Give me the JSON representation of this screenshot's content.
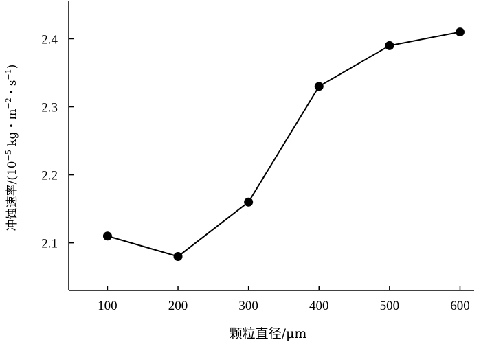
{
  "chart_data": {
    "type": "line",
    "title": "",
    "xlabel": "颗粒直径/μm",
    "ylabel_main": "冲蚀速率/(10",
    "ylabel_exp1": "−5",
    "ylabel_kg": " kg・m",
    "ylabel_exp2": "−2",
    "ylabel_s": "・s",
    "ylabel_exp3": "−1",
    "ylabel_close": ")",
    "x": [
      100,
      200,
      300,
      400,
      500,
      600
    ],
    "series": [
      {
        "values": [
          2.11,
          2.08,
          2.16,
          2.33,
          2.39,
          2.41
        ]
      }
    ],
    "xlim": [
      45,
      620
    ],
    "ylim": [
      2.03,
      2.455
    ],
    "x_ticks": [
      "100",
      "200",
      "300",
      "400",
      "500",
      "600"
    ],
    "y_ticks": [
      "2.1",
      "2.2",
      "2.3",
      "2.4"
    ],
    "grid": false,
    "legend": "none",
    "line_color": "#000000",
    "marker": "filled-circle"
  }
}
